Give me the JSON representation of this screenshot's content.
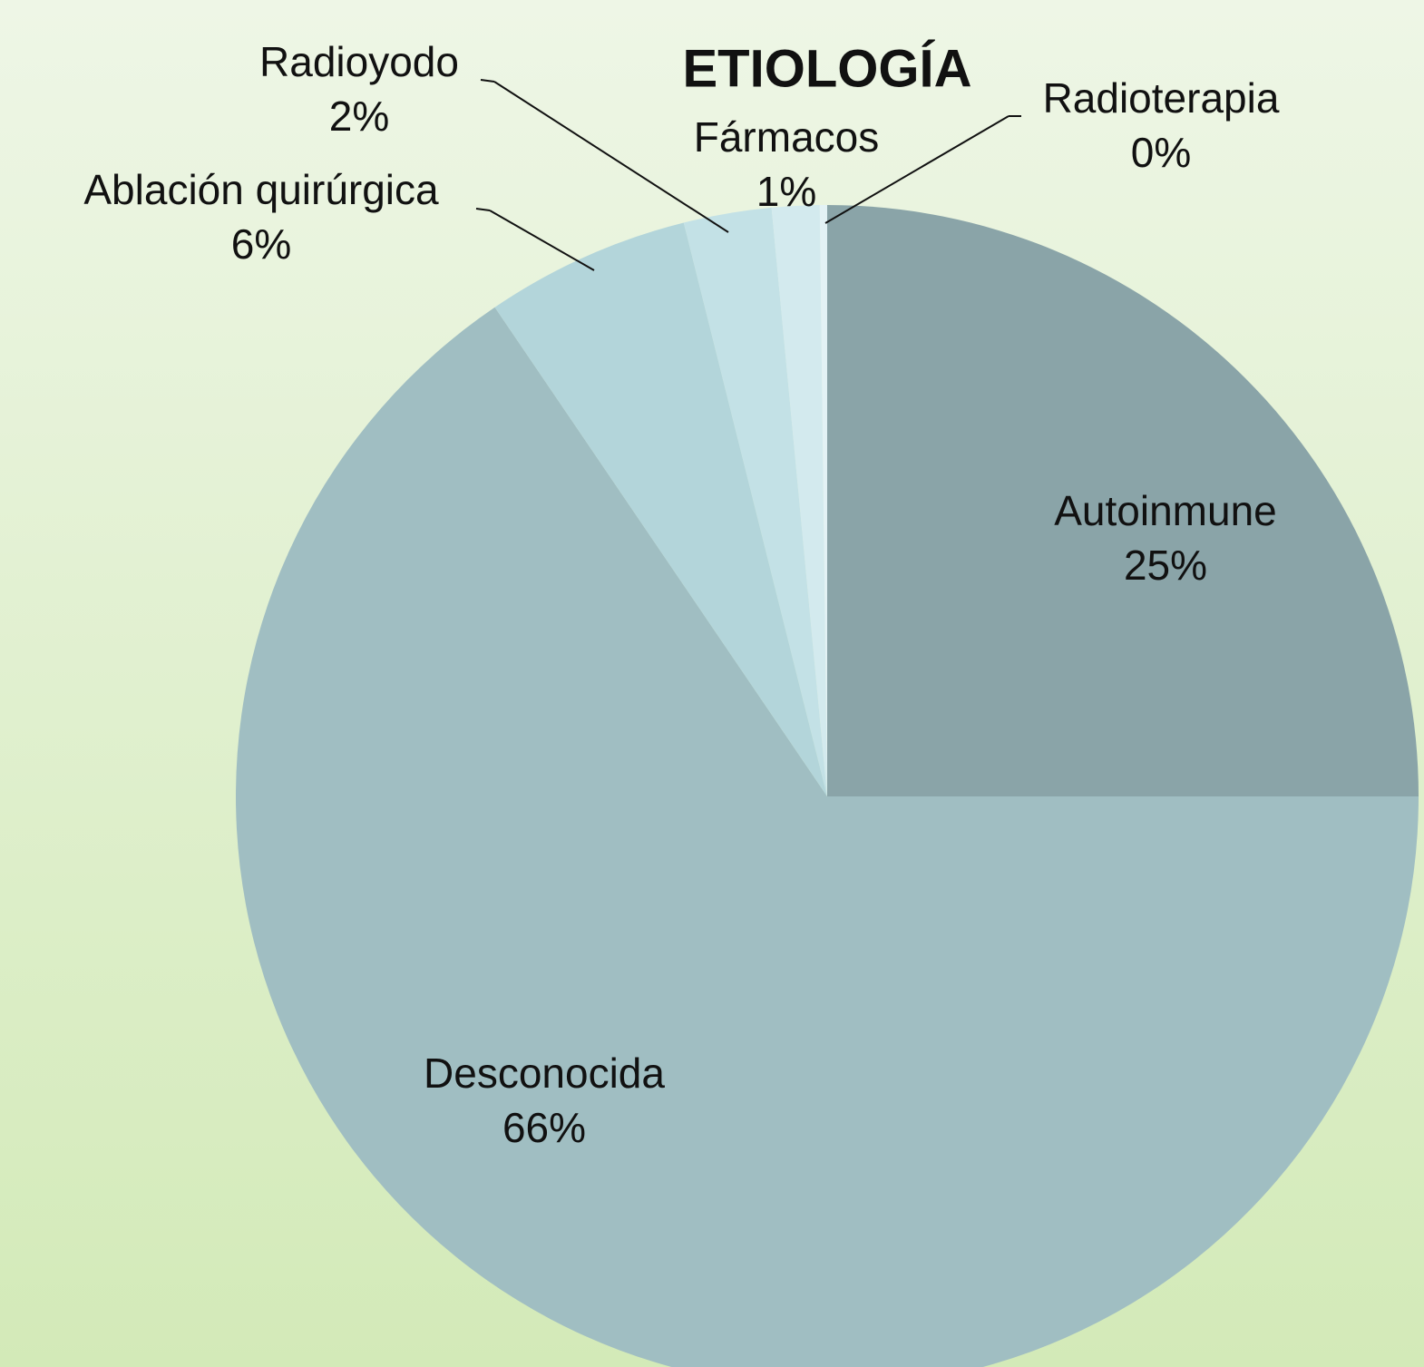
{
  "chart_data": {
    "type": "pie",
    "title": "ETIOLOGÍA",
    "categories": [
      "Autoinmune",
      "Desconocida",
      "Ablación quirúrgica",
      "Radioyodo",
      "Fármacos",
      "Radioterapia"
    ],
    "values": [
      25,
      65.5,
      5.6,
      2.4,
      1.3,
      0.2
    ],
    "value_labels": [
      "25%",
      "66%",
      "6%",
      "2%",
      "1%",
      "0%"
    ],
    "colors": [
      "#8aa4a8",
      "#a0bec2",
      "#b3d5da",
      "#c3e1e6",
      "#d3eaee",
      "#e3f2f5"
    ]
  }
}
